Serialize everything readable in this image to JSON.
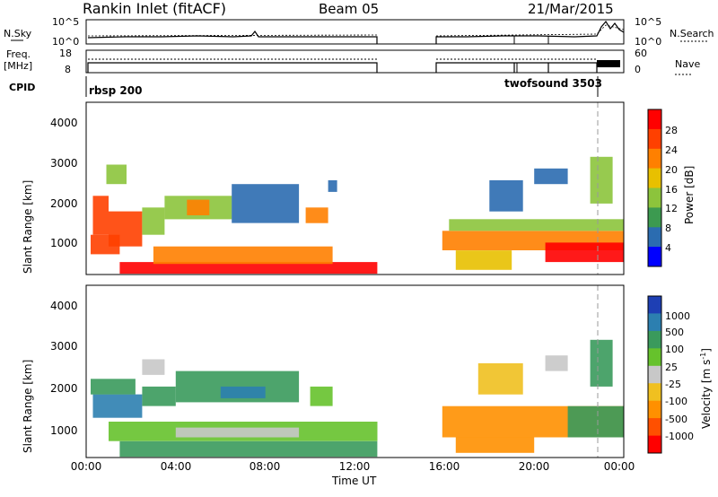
{
  "header": {
    "title": "Rankin Inlet (fitACF)",
    "beam": "Beam 05",
    "date": "21/Mar/2015"
  },
  "side_labels": {
    "nsky": "N.Sky",
    "nsearch": "N.Search",
    "freq_line1": "Freq.",
    "freq_line2": "[MHz]",
    "nave": "Nave",
    "cpid": "CPID"
  },
  "noise_panel": {
    "left_ticks": [
      "10^5",
      "10^0"
    ],
    "right_ticks": [
      "10^5",
      "10^0"
    ]
  },
  "freq_panel": {
    "left_ticks": [
      "18",
      "8"
    ],
    "right_ticks": [
      "60",
      "0"
    ]
  },
  "cpid_panel": {
    "labels": [
      "rbsp 200",
      "twofsound 3503"
    ]
  },
  "power_colorbar": {
    "label": "Power [dB]",
    "ticks": [
      "28",
      "24",
      "20",
      "16",
      "12",
      "8",
      "4"
    ],
    "colors": [
      "#ff0000",
      "#ff4000",
      "#ff8000",
      "#e8c000",
      "#8cc43c",
      "#3c9a50",
      "#2b6cb0",
      "#0000ff"
    ]
  },
  "velocity_colorbar": {
    "label": "Velocity [m s",
    "label_sup": "-1",
    "label_close": "]",
    "ticks": [
      "1000",
      "500",
      "100",
      "25",
      "-25",
      "-100",
      "-500",
      "-1000"
    ],
    "colors": [
      "#1e3fb4",
      "#2c7fb0",
      "#3a9a5c",
      "#66c22c",
      "#c8c8c8",
      "#f0c020",
      "#ff9000",
      "#ff5000",
      "#ff0000"
    ]
  },
  "axes": {
    "ylabel": "Slant Range [km]",
    "xlabel": "Time UT",
    "yticks": [
      "1000",
      "2000",
      "3000",
      "4000"
    ],
    "xticks": [
      "00:00",
      "04:00",
      "08:00",
      "12:00",
      "16:00",
      "20:00",
      "00:00"
    ]
  },
  "chart_data": [
    {
      "type": "heatmap",
      "title": "",
      "xlabel": "",
      "ylabel": "Slant Range [km]",
      "colorbar_label": "Power [dB]",
      "x_unit": "hours UT",
      "xlim": [
        0,
        24
      ],
      "ylim": [
        180,
        4600
      ],
      "clim": [
        0,
        32
      ],
      "cells": [
        {
          "x0": 0.2,
          "x1": 1.5,
          "y0": 700,
          "y1": 1200,
          "value": 26
        },
        {
          "x0": 0.3,
          "x1": 1.0,
          "y0": 1200,
          "y1": 2200,
          "value": 24
        },
        {
          "x0": 1.0,
          "x1": 2.5,
          "y0": 900,
          "y1": 1800,
          "value": 25
        },
        {
          "x0": 2.5,
          "x1": 3.5,
          "y0": 1200,
          "y1": 1900,
          "value": 12
        },
        {
          "x0": 3.5,
          "x1": 6.5,
          "y0": 1600,
          "y1": 2200,
          "value": 13
        },
        {
          "x0": 4.5,
          "x1": 5.5,
          "y0": 1700,
          "y1": 2100,
          "value": 21
        },
        {
          "x0": 6.5,
          "x1": 9.5,
          "y0": 1500,
          "y1": 2500,
          "value": 7
        },
        {
          "x0": 9.8,
          "x1": 10.8,
          "y0": 1500,
          "y1": 1900,
          "value": 20
        },
        {
          "x0": 10.8,
          "x1": 11.2,
          "y0": 2300,
          "y1": 2600,
          "value": 7
        },
        {
          "x0": 1.5,
          "x1": 13.0,
          "y0": 200,
          "y1": 500,
          "value": 28
        },
        {
          "x0": 3.0,
          "x1": 11.0,
          "y0": 450,
          "y1": 900,
          "value": 22
        },
        {
          "x0": 0.9,
          "x1": 1.8,
          "y0": 2500,
          "y1": 3000,
          "value": 12
        },
        {
          "x0": 15.9,
          "x1": 24.0,
          "y0": 800,
          "y1": 1300,
          "value": 22
        },
        {
          "x0": 16.2,
          "x1": 24.0,
          "y0": 1300,
          "y1": 1600,
          "value": 12
        },
        {
          "x0": 16.5,
          "x1": 19.0,
          "y0": 300,
          "y1": 800,
          "value": 18
        },
        {
          "x0": 18.0,
          "x1": 19.5,
          "y0": 1800,
          "y1": 2600,
          "value": 7
        },
        {
          "x0": 20.0,
          "x1": 21.5,
          "y0": 2500,
          "y1": 2900,
          "value": 7
        },
        {
          "x0": 20.5,
          "x1": 24.0,
          "y0": 500,
          "y1": 1000,
          "value": 30
        },
        {
          "x0": 22.5,
          "x1": 23.5,
          "y0": 2000,
          "y1": 3200,
          "value": 12
        }
      ]
    },
    {
      "type": "heatmap",
      "title": "",
      "xlabel": "Time UT",
      "ylabel": "Slant Range [km]",
      "colorbar_label": "Velocity [m s-1]",
      "x_unit": "hours UT",
      "xlim": [
        0,
        24
      ],
      "ylim": [
        180,
        4600
      ],
      "clim": [
        -1000,
        1000
      ],
      "cells": [
        {
          "x0": 0.3,
          "x1": 2.5,
          "y0": 1200,
          "y1": 1800,
          "value": 900
        },
        {
          "x0": 0.2,
          "x1": 2.2,
          "y0": 1800,
          "y1": 2200,
          "value": 150
        },
        {
          "x0": 2.5,
          "x1": 4.0,
          "y0": 1500,
          "y1": 2000,
          "value": 400
        },
        {
          "x0": 4.0,
          "x1": 9.5,
          "y0": 1600,
          "y1": 2400,
          "value": 120
        },
        {
          "x0": 6.0,
          "x1": 8.0,
          "y0": 1700,
          "y1": 2000,
          "value": 800
        },
        {
          "x0": 1.0,
          "x1": 13.0,
          "y0": 600,
          "y1": 1100,
          "value": 80
        },
        {
          "x0": 4.0,
          "x1": 9.5,
          "y0": 700,
          "y1": 950,
          "value": 0
        },
        {
          "x0": 1.5,
          "x1": 13.0,
          "y0": 200,
          "y1": 600,
          "value": 200
        },
        {
          "x0": 10.0,
          "x1": 11.0,
          "y0": 1500,
          "y1": 2000,
          "value": 90
        },
        {
          "x0": 2.5,
          "x1": 3.5,
          "y0": 2300,
          "y1": 2700,
          "value": 0
        },
        {
          "x0": 15.9,
          "x1": 24.0,
          "y0": 700,
          "y1": 1500,
          "value": -300
        },
        {
          "x0": 16.5,
          "x1": 20.0,
          "y0": 300,
          "y1": 700,
          "value": -200
        },
        {
          "x0": 21.5,
          "x1": 24.0,
          "y0": 700,
          "y1": 1500,
          "value": 200
        },
        {
          "x0": 17.5,
          "x1": 19.5,
          "y0": 1800,
          "y1": 2600,
          "value": -60
        },
        {
          "x0": 20.5,
          "x1": 21.5,
          "y0": 2400,
          "y1": 2800,
          "value": 0
        },
        {
          "x0": 22.5,
          "x1": 23.5,
          "y0": 2000,
          "y1": 3200,
          "value": 400
        }
      ]
    }
  ]
}
